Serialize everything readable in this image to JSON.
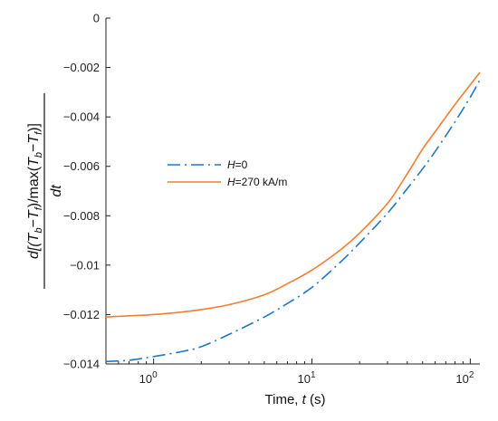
{
  "chart_data": {
    "type": "line",
    "xscale": "log",
    "xlim": [
      0.5,
      115
    ],
    "ylim": [
      -0.014,
      0
    ],
    "xticks": [
      1,
      10,
      100
    ],
    "xtick_labels": [
      {
        "base": "10",
        "exp": "0"
      },
      {
        "base": "10",
        "exp": "1"
      },
      {
        "base": "10",
        "exp": "2"
      }
    ],
    "yticks": [
      0,
      -0.002,
      -0.004,
      -0.006,
      -0.008,
      -0.01,
      -0.012,
      -0.014
    ],
    "ytick_labels": [
      "0",
      "−0.002",
      "−0.004",
      "−0.006",
      "−0.008",
      "−0.01",
      "−0.012",
      "−0.014"
    ],
    "xlabel": "Time, t (s)",
    "ylabel": "d[(T_b−T_f)/max(T_b−T_f)] / dt",
    "ylabel_parts": {
      "numerator_segments": [
        "d[(",
        "T",
        "b",
        "−",
        "T",
        "f",
        ")/max(",
        "T",
        "b",
        "−",
        "T",
        "f",
        ")]"
      ],
      "denominator": "dt"
    },
    "grid": false,
    "legend_position": "upper-left",
    "series": [
      {
        "name": "H=0",
        "name_italic": "H",
        "name_rest": "=0",
        "color": "#1f77c4",
        "style": "dashdot",
        "x": [
          0.5,
          0.7,
          1,
          1.5,
          2,
          3,
          5,
          7,
          10,
          15,
          20,
          30,
          40,
          50,
          60,
          80,
          100,
          115
        ],
        "y": [
          -0.0139,
          -0.01385,
          -0.0137,
          -0.0135,
          -0.0133,
          -0.0128,
          -0.0121,
          -0.01155,
          -0.0109,
          -0.0099,
          -0.0091,
          -0.0079,
          -0.0069,
          -0.0061,
          -0.0054,
          -0.0042,
          -0.0032,
          -0.0025
        ]
      },
      {
        "name": "H=270 kA/m",
        "name_italic": "H",
        "name_rest": "=270 kA/m",
        "color": "#f47d30",
        "style": "solid",
        "x": [
          0.5,
          0.7,
          1,
          1.5,
          2,
          3,
          5,
          7,
          10,
          15,
          20,
          30,
          40,
          50,
          60,
          80,
          100,
          115
        ],
        "y": [
          -0.0121,
          -0.01205,
          -0.012,
          -0.0119,
          -0.0118,
          -0.0116,
          -0.0112,
          -0.01075,
          -0.0102,
          -0.0094,
          -0.0087,
          -0.0075,
          -0.0063,
          -0.0053,
          -0.0046,
          -0.0035,
          -0.0027,
          -0.0022
        ]
      }
    ]
  }
}
